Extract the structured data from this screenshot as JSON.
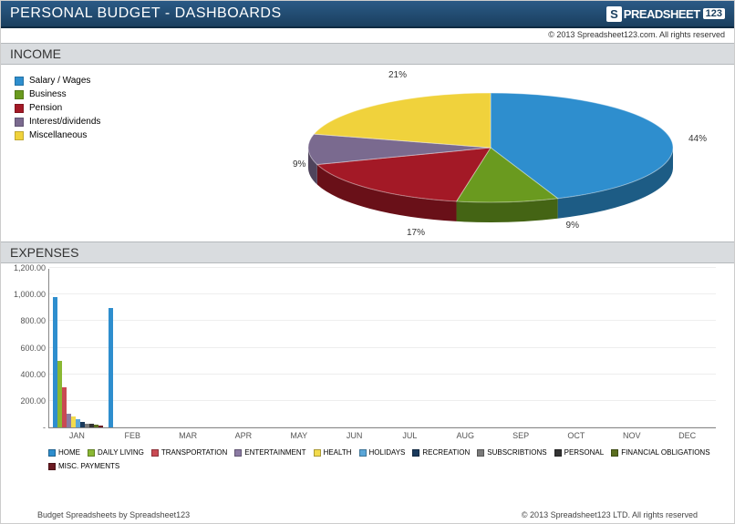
{
  "header": {
    "title": "PERSONAL BUDGET - DASHBOARDS",
    "brand_s": "S",
    "brand_text": "PREADSHEET",
    "brand_num": "123",
    "copyright": "© 2013 Spreadsheet123.com. All rights reserved"
  },
  "income": {
    "heading": "INCOME",
    "legend": [
      {
        "label": "Salary / Wages",
        "color": "#2e8ece"
      },
      {
        "label": "Business",
        "color": "#6a9a1f"
      },
      {
        "label": "Pension",
        "color": "#a31926"
      },
      {
        "label": "Interest/dividends",
        "color": "#7a6a8f"
      },
      {
        "label": "Miscellaneous",
        "color": "#f0d23c"
      }
    ],
    "slices": [
      {
        "pct": "44%",
        "color": "#2e8ece",
        "value": 44
      },
      {
        "pct": "9%",
        "color": "#6a9a1f",
        "value": 9
      },
      {
        "pct": "17%",
        "color": "#a31926",
        "value": 17
      },
      {
        "pct": "9%",
        "color": "#7a6a8f",
        "value": 9
      },
      {
        "pct": "21%",
        "color": "#f0d23c",
        "value": 21
      }
    ]
  },
  "expenses": {
    "heading": "EXPENSES",
    "ymax": 1200,
    "yticks": [
      "-",
      "200.00",
      "400.00",
      "600.00",
      "800.00",
      "1,000.00",
      "1,200.00"
    ],
    "months": [
      "JAN",
      "FEB",
      "MAR",
      "APR",
      "MAY",
      "JUN",
      "JUL",
      "AUG",
      "SEP",
      "OCT",
      "NOV",
      "DEC"
    ],
    "legend": [
      {
        "label": "HOME",
        "color": "#2e8ece"
      },
      {
        "label": "DAILY LIVING",
        "color": "#8ab833"
      },
      {
        "label": "TRANSPORTATION",
        "color": "#c94a53"
      },
      {
        "label": "ENTERTAINMENT",
        "color": "#8b7aa3"
      },
      {
        "label": "HEALTH",
        "color": "#f3db4c"
      },
      {
        "label": "HOLIDAYS",
        "color": "#5aa6d8"
      },
      {
        "label": "RECREATION",
        "color": "#1a3a5c"
      },
      {
        "label": "SUBSCRIBTIONS",
        "color": "#7a7a7a"
      },
      {
        "label": "PERSONAL",
        "color": "#333333"
      },
      {
        "label": "FINANCIAL OBLIGATIONS",
        "color": "#5a6e1f"
      },
      {
        "label": "MISC. PAYMENTS",
        "color": "#6b1a22"
      }
    ],
    "bars_jan": [
      {
        "color": "#2e8ece",
        "value": 980
      },
      {
        "color": "#8ab833",
        "value": 500
      },
      {
        "color": "#c94a53",
        "value": 300
      },
      {
        "color": "#8b7aa3",
        "value": 100
      },
      {
        "color": "#f3db4c",
        "value": 80
      },
      {
        "color": "#5aa6d8",
        "value": 60
      },
      {
        "color": "#1a3a5c",
        "value": 40
      },
      {
        "color": "#7a7a7a",
        "value": 30
      },
      {
        "color": "#333333",
        "value": 25
      },
      {
        "color": "#5a6e1f",
        "value": 20
      },
      {
        "color": "#6b1a22",
        "value": 15
      }
    ],
    "bars_feb": [
      {
        "color": "#2e8ece",
        "value": 900
      }
    ]
  },
  "footer": {
    "left": "Budget Spreadsheets by Spreadsheet123",
    "right": "© 2013 Spreadsheet123 LTD. All rights reserved"
  }
}
